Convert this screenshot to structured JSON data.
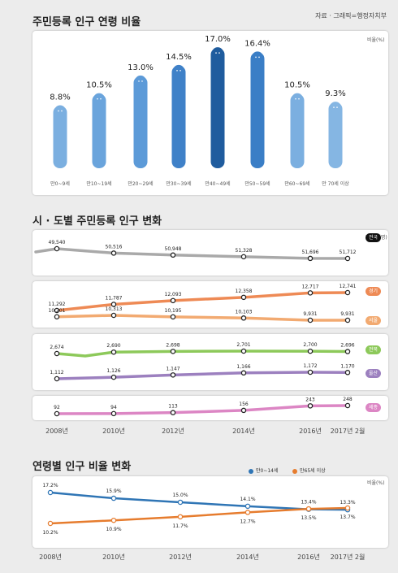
{
  "source": "자료 · 그래픽=행정자치부",
  "colors": {
    "nation": "#a9a9a9",
    "gyeonggi": "#ee8a55",
    "seoul": "#f2aa71",
    "jeonbuk": "#8dc95a",
    "ulsan": "#9c80bf",
    "sejong": "#dc86c4",
    "age_young": "#2f75b5",
    "age_old": "#e67c2e"
  },
  "chart_data": [
    {
      "type": "bar",
      "title": "주민등록 인구 연령 비율",
      "unit": "비율(%)",
      "categories": [
        "만0~9세",
        "만10~19세",
        "만20~29세",
        "만30~39세",
        "만40~49세",
        "만50~59세",
        "만60~69세",
        "만 70세 이상"
      ],
      "values": [
        8.8,
        10.5,
        13.0,
        14.5,
        17.0,
        16.4,
        10.5,
        9.3
      ],
      "value_labels": [
        "8.8%",
        "10.5%",
        "13.0%",
        "14.5%",
        "17.0%",
        "16.4%",
        "10.5%",
        "9.3%"
      ],
      "colors": [
        "#7bafe0",
        "#6aa4dc",
        "#5c9ad8",
        "#3f81c8",
        "#1f5c9e",
        "#3a7ec6",
        "#7bafe0",
        "#85b6e3"
      ]
    },
    {
      "type": "line",
      "title": "시 · 도별 주민등록 인구 변화",
      "unit": "단위(천명)",
      "x": [
        "2008년",
        "2010년",
        "2012년",
        "2014년",
        "2016년",
        "2017년 2월"
      ],
      "series": [
        {
          "name": "전국",
          "key": "nation",
          "values": [
            49540,
            50516,
            50948,
            51328,
            51696,
            51712
          ],
          "labels": [
            "49,540",
            "50,516",
            "50,948",
            "51,328",
            "51,696",
            "51,712"
          ]
        },
        {
          "name": "경기",
          "key": "gyeonggi",
          "values": [
            11292,
            11787,
            12093,
            12358,
            12717,
            12741
          ],
          "labels": [
            "11,292",
            "11,787",
            "12,093",
            "12,358",
            "12,717",
            "12,741"
          ]
        },
        {
          "name": "서울",
          "key": "seoul",
          "values": [
            10201,
            10313,
            10195,
            10103,
            9931,
            9931
          ],
          "labels": [
            "10,201",
            "10,313",
            "10,195",
            "10,103",
            "9,931",
            "9,931"
          ]
        },
        {
          "name": "전북",
          "key": "jeonbuk",
          "values": [
            2674,
            2690,
            2698,
            2701,
            2700,
            2696
          ],
          "labels": [
            "2,674",
            "2,690",
            "2,698",
            "2,701",
            "2,700",
            "2,696"
          ]
        },
        {
          "name": "울산",
          "key": "ulsan",
          "values": [
            1112,
            1126,
            1147,
            1166,
            1172,
            1170
          ],
          "labels": [
            "1,112",
            "1,126",
            "1,147",
            "1,166",
            "1,172",
            "1,170"
          ]
        },
        {
          "name": "세종",
          "key": "sejong",
          "values": [
            92,
            94,
            113,
            156,
            243,
            248
          ],
          "labels": [
            "92",
            "94",
            "113",
            "156",
            "243",
            "248"
          ]
        }
      ]
    },
    {
      "type": "line",
      "title": "연령별 인구 비율 변화",
      "unit": "비율(%)",
      "x": [
        "2008년",
        "2010년",
        "2012년",
        "2014년",
        "2016년",
        "2017년 2월"
      ],
      "series": [
        {
          "name": "만0~14세",
          "key": "age_young",
          "values": [
            17.2,
            15.9,
            15.0,
            14.1,
            13.4,
            13.3
          ],
          "labels": [
            "17.2%",
            "15.9%",
            "15.0%",
            "14.1%",
            "13.4%",
            "13.3%"
          ]
        },
        {
          "name": "만65세 이상",
          "key": "age_old",
          "values": [
            10.2,
            10.9,
            11.7,
            12.7,
            13.5,
            13.7
          ],
          "labels": [
            "10.2%",
            "10.9%",
            "11.7%",
            "12.7%",
            "13.5%",
            "13.7%"
          ]
        }
      ]
    }
  ]
}
